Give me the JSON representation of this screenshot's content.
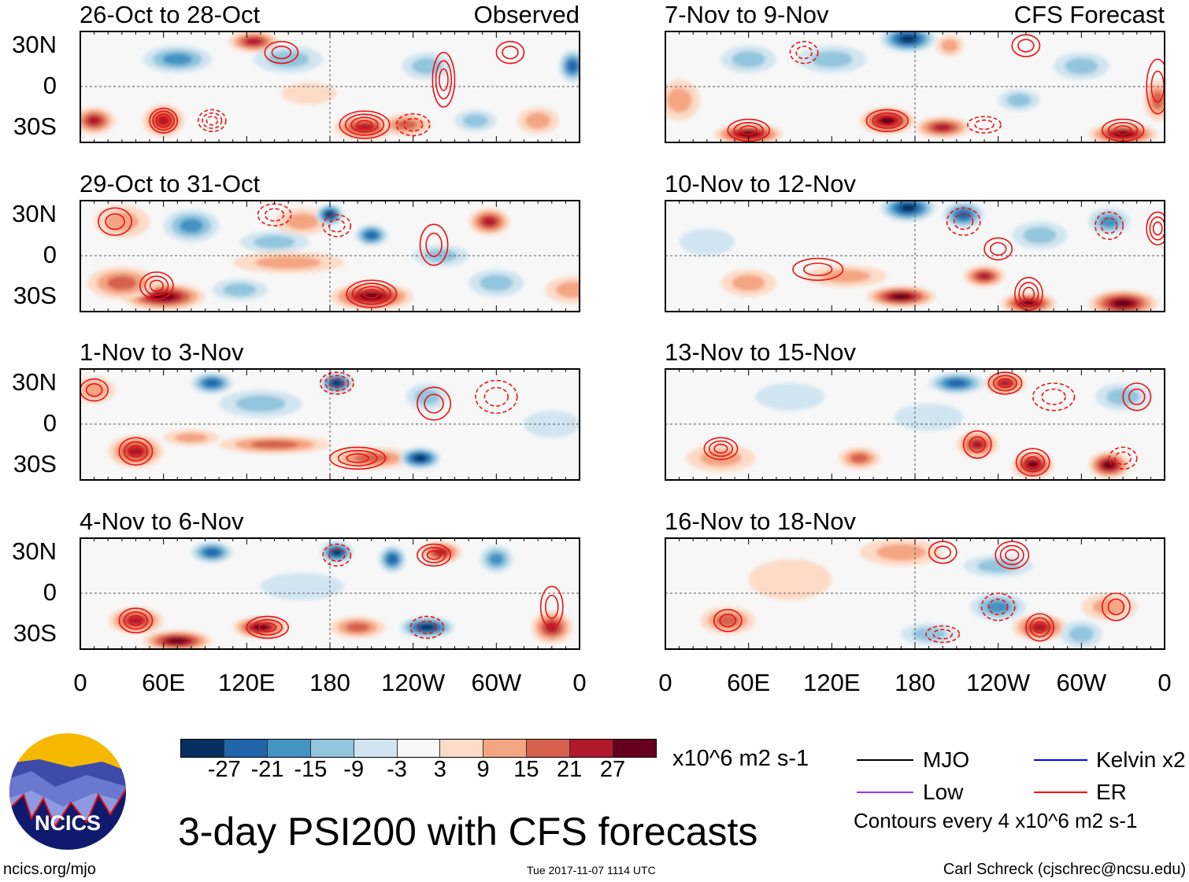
{
  "figure_title": "3-day PSI200 with CFS forecasts",
  "observed_label": "Observed",
  "forecast_label": "CFS Forecast",
  "lat_labels": [
    "30N",
    "0",
    "30S"
  ],
  "lon_labels": [
    "0",
    "60E",
    "120E",
    "180",
    "120W",
    "60W",
    "0"
  ],
  "colorbar": {
    "colors": [
      "#053061",
      "#2166ac",
      "#4393c3",
      "#92c5de",
      "#d1e5f0",
      "#f7f7f7",
      "#fddbc7",
      "#f4a582",
      "#d6604d",
      "#b2182b",
      "#67001f"
    ],
    "labels": [
      "-27",
      "-21",
      "-15",
      "-9",
      "-3",
      "3",
      "9",
      "15",
      "21",
      "27"
    ],
    "units": "x10^6 m2 s-1"
  },
  "legend": {
    "items": [
      {
        "label": "MJO",
        "color": "#000000"
      },
      {
        "label": "Kelvin x2",
        "color": "#0000ff"
      },
      {
        "label": "Low",
        "color": "#9933ff"
      },
      {
        "label": "ER",
        "color": "#ff0000"
      }
    ],
    "note": "Contours every 4 x10^6 m2 s-1"
  },
  "logo": {
    "text": "NCICS"
  },
  "footer": {
    "url": "ncics.org/mjo",
    "timestamp": "Tue 2017-11-07 1114 UTC",
    "author": "Carl Schreck (cjschrec@ncsu.edu)"
  },
  "chart_data": {
    "type": "map",
    "variable": "200-hPa streamfunction anomaly (PSI200)",
    "lon_range": [
      0,
      360
    ],
    "lat_range": [
      -40,
      40
    ],
    "panels": [
      {
        "title": "26-Oct to 28-Oct",
        "kind": "observed",
        "blobs": [
          [
            125,
            33,
            18,
            8,
            22
          ],
          [
            70,
            20,
            25,
            10,
            -15
          ],
          [
            60,
            -25,
            15,
            12,
            22
          ],
          [
            10,
            -25,
            15,
            10,
            20
          ],
          [
            205,
            -30,
            22,
            9,
            20
          ],
          [
            235,
            -28,
            18,
            8,
            15
          ],
          [
            250,
            15,
            18,
            10,
            -12
          ],
          [
            355,
            15,
            10,
            12,
            -25
          ],
          [
            330,
            -25,
            15,
            10,
            10
          ],
          [
            285,
            -25,
            15,
            8,
            -8
          ],
          [
            150,
            20,
            25,
            10,
            -10
          ],
          [
            165,
            -5,
            20,
            8,
            6
          ]
        ],
        "contours": [
          [
            60,
            -25,
            10,
            9,
            4,
            0
          ],
          [
            205,
            -28,
            18,
            10,
            4,
            0
          ],
          [
            262,
            5,
            8,
            20,
            3,
            0
          ],
          [
            310,
            25,
            10,
            8,
            2,
            0
          ],
          [
            95,
            -25,
            10,
            8,
            3,
            1
          ],
          [
            240,
            -28,
            12,
            8,
            2,
            1
          ],
          [
            145,
            25,
            12,
            8,
            2,
            0
          ]
        ]
      },
      {
        "title": "29-Oct to 31-Oct",
        "kind": "observed",
        "blobs": [
          [
            80,
            22,
            20,
            12,
            -15
          ],
          [
            30,
            25,
            20,
            12,
            12
          ],
          [
            160,
            25,
            20,
            10,
            9
          ],
          [
            180,
            30,
            10,
            8,
            -27
          ],
          [
            210,
            15,
            12,
            8,
            -21
          ],
          [
            140,
            10,
            25,
            8,
            -9
          ],
          [
            295,
            25,
            15,
            10,
            21
          ],
          [
            260,
            0,
            20,
            8,
            -9
          ],
          [
            60,
            -30,
            30,
            10,
            27
          ],
          [
            30,
            -20,
            25,
            12,
            15
          ],
          [
            210,
            -30,
            30,
            10,
            27
          ],
          [
            150,
            -5,
            40,
            8,
            12
          ],
          [
            300,
            -20,
            20,
            10,
            -9
          ],
          [
            355,
            -25,
            20,
            10,
            12
          ],
          [
            115,
            -25,
            20,
            8,
            -9
          ]
        ],
        "contours": [
          [
            210,
            -28,
            18,
            10,
            4,
            0
          ],
          [
            55,
            -22,
            12,
            10,
            3,
            0
          ],
          [
            25,
            25,
            12,
            10,
            2,
            0
          ],
          [
            255,
            8,
            10,
            15,
            2,
            0
          ],
          [
            140,
            30,
            12,
            8,
            2,
            1
          ],
          [
            185,
            22,
            10,
            8,
            2,
            1
          ]
        ]
      },
      {
        "title": "1-Nov to 3-Nov",
        "kind": "observed",
        "blobs": [
          [
            95,
            30,
            15,
            8,
            -21
          ],
          [
            185,
            30,
            12,
            8,
            -27
          ],
          [
            10,
            25,
            15,
            10,
            12
          ],
          [
            250,
            20,
            15,
            10,
            -9
          ],
          [
            40,
            -20,
            20,
            12,
            21
          ],
          [
            140,
            -15,
            40,
            7,
            15
          ],
          [
            210,
            -25,
            30,
            8,
            15
          ],
          [
            245,
            -25,
            15,
            8,
            -27
          ],
          [
            80,
            -10,
            20,
            6,
            9
          ],
          [
            340,
            0,
            20,
            10,
            -6
          ],
          [
            130,
            15,
            30,
            10,
            -9
          ]
        ],
        "contours": [
          [
            40,
            -20,
            12,
            10,
            3,
            0
          ],
          [
            10,
            25,
            10,
            8,
            2,
            0
          ],
          [
            200,
            -25,
            20,
            8,
            3,
            0
          ],
          [
            255,
            15,
            12,
            12,
            2,
            0
          ],
          [
            185,
            30,
            12,
            8,
            3,
            1
          ],
          [
            300,
            20,
            15,
            12,
            2,
            1
          ]
        ]
      },
      {
        "title": "4-Nov to 6-Nov",
        "kind": "observed",
        "blobs": [
          [
            95,
            30,
            15,
            8,
            -21
          ],
          [
            185,
            30,
            12,
            8,
            -27
          ],
          [
            225,
            25,
            10,
            10,
            -21
          ],
          [
            260,
            30,
            15,
            8,
            21
          ],
          [
            300,
            25,
            12,
            10,
            -15
          ],
          [
            40,
            -20,
            20,
            10,
            21
          ],
          [
            70,
            -35,
            25,
            8,
            27
          ],
          [
            130,
            -25,
            20,
            8,
            27
          ],
          [
            200,
            -25,
            20,
            8,
            15
          ],
          [
            250,
            -25,
            20,
            8,
            -27
          ],
          [
            340,
            -25,
            15,
            12,
            21
          ],
          [
            160,
            5,
            30,
            10,
            -6
          ]
        ],
        "contours": [
          [
            40,
            -20,
            12,
            9,
            3,
            0
          ],
          [
            135,
            -25,
            15,
            8,
            3,
            0
          ],
          [
            255,
            28,
            12,
            8,
            3,
            0
          ],
          [
            185,
            28,
            10,
            8,
            2,
            1
          ],
          [
            250,
            -25,
            12,
            8,
            2,
            1
          ],
          [
            340,
            -10,
            8,
            15,
            2,
            0
          ]
        ]
      },
      {
        "title": "7-Nov to 9-Nov",
        "kind": "forecast",
        "blobs": [
          [
            175,
            35,
            20,
            10,
            -27
          ],
          [
            205,
            30,
            10,
            8,
            9
          ],
          [
            120,
            20,
            25,
            10,
            -12
          ],
          [
            10,
            -10,
            15,
            15,
            12
          ],
          [
            60,
            -35,
            25,
            8,
            27
          ],
          [
            160,
            -25,
            20,
            10,
            27
          ],
          [
            200,
            -30,
            20,
            8,
            21
          ],
          [
            330,
            -35,
            25,
            8,
            27
          ],
          [
            355,
            -10,
            10,
            15,
            15
          ],
          [
            300,
            15,
            20,
            10,
            -12
          ],
          [
            255,
            -10,
            15,
            8,
            -9
          ],
          [
            60,
            20,
            20,
            10,
            -9
          ]
        ],
        "contours": [
          [
            60,
            -32,
            15,
            8,
            3,
            0
          ],
          [
            160,
            -25,
            15,
            8,
            3,
            0
          ],
          [
            330,
            -32,
            15,
            8,
            3,
            0
          ],
          [
            260,
            30,
            10,
            8,
            2,
            0
          ],
          [
            355,
            0,
            8,
            20,
            2,
            0
          ],
          [
            230,
            -28,
            12,
            6,
            2,
            1
          ],
          [
            100,
            25,
            10,
            8,
            2,
            1
          ]
        ]
      },
      {
        "title": "10-Nov to 12-Nov",
        "kind": "forecast",
        "blobs": [
          [
            175,
            35,
            20,
            10,
            -27
          ],
          [
            215,
            30,
            15,
            10,
            -21
          ],
          [
            320,
            25,
            15,
            10,
            -15
          ],
          [
            60,
            -20,
            20,
            10,
            12
          ],
          [
            170,
            -30,
            25,
            8,
            27
          ],
          [
            230,
            -15,
            15,
            8,
            21
          ],
          [
            262,
            -35,
            20,
            8,
            27
          ],
          [
            330,
            -35,
            25,
            10,
            27
          ],
          [
            130,
            -15,
            30,
            8,
            12
          ],
          [
            270,
            15,
            20,
            10,
            -12
          ],
          [
            30,
            10,
            20,
            10,
            -6
          ]
        ],
        "contours": [
          [
            262,
            -28,
            10,
            12,
            3,
            0
          ],
          [
            355,
            20,
            8,
            12,
            3,
            0
          ],
          [
            110,
            -10,
            18,
            8,
            2,
            0
          ],
          [
            240,
            5,
            10,
            8,
            2,
            0
          ],
          [
            215,
            25,
            12,
            10,
            2,
            1
          ],
          [
            320,
            22,
            10,
            10,
            2,
            1
          ]
        ]
      },
      {
        "title": "13-Nov to 15-Nov",
        "kind": "forecast",
        "blobs": [
          [
            210,
            30,
            20,
            8,
            -21
          ],
          [
            245,
            30,
            15,
            8,
            21
          ],
          [
            330,
            20,
            20,
            10,
            -9
          ],
          [
            40,
            -25,
            25,
            10,
            12
          ],
          [
            140,
            -25,
            15,
            8,
            15
          ],
          [
            225,
            -15,
            15,
            10,
            21
          ],
          [
            265,
            -30,
            15,
            10,
            27
          ],
          [
            320,
            -30,
            15,
            10,
            27
          ],
          [
            90,
            20,
            25,
            10,
            -6
          ],
          [
            190,
            5,
            25,
            10,
            -6
          ]
        ],
        "contours": [
          [
            40,
            -18,
            12,
            8,
            3,
            0
          ],
          [
            245,
            30,
            12,
            8,
            3,
            0
          ],
          [
            265,
            -28,
            12,
            10,
            3,
            0
          ],
          [
            340,
            20,
            10,
            10,
            2,
            0
          ],
          [
            225,
            -15,
            10,
            10,
            2,
            0
          ],
          [
            280,
            20,
            15,
            10,
            2,
            1
          ],
          [
            330,
            -25,
            10,
            8,
            2,
            1
          ]
        ]
      },
      {
        "title": "16-Nov to 18-Nov",
        "kind": "forecast",
        "blobs": [
          [
            240,
            20,
            25,
            8,
            -9
          ],
          [
            170,
            30,
            30,
            10,
            9
          ],
          [
            240,
            -10,
            20,
            10,
            -15
          ],
          [
            270,
            -25,
            20,
            10,
            21
          ],
          [
            45,
            -20,
            20,
            10,
            15
          ],
          [
            190,
            -30,
            20,
            8,
            -12
          ],
          [
            300,
            -30,
            15,
            10,
            -12
          ],
          [
            320,
            -10,
            20,
            10,
            9
          ],
          [
            90,
            10,
            30,
            15,
            6
          ]
        ],
        "contours": [
          [
            250,
            28,
            12,
            10,
            3,
            0
          ],
          [
            270,
            -25,
            10,
            10,
            3,
            0
          ],
          [
            45,
            -20,
            10,
            8,
            2,
            0
          ],
          [
            200,
            30,
            10,
            8,
            2,
            0
          ],
          [
            325,
            -10,
            10,
            10,
            2,
            0
          ],
          [
            240,
            -10,
            12,
            10,
            2,
            1
          ],
          [
            200,
            -30,
            12,
            6,
            2,
            1
          ]
        ]
      }
    ]
  }
}
